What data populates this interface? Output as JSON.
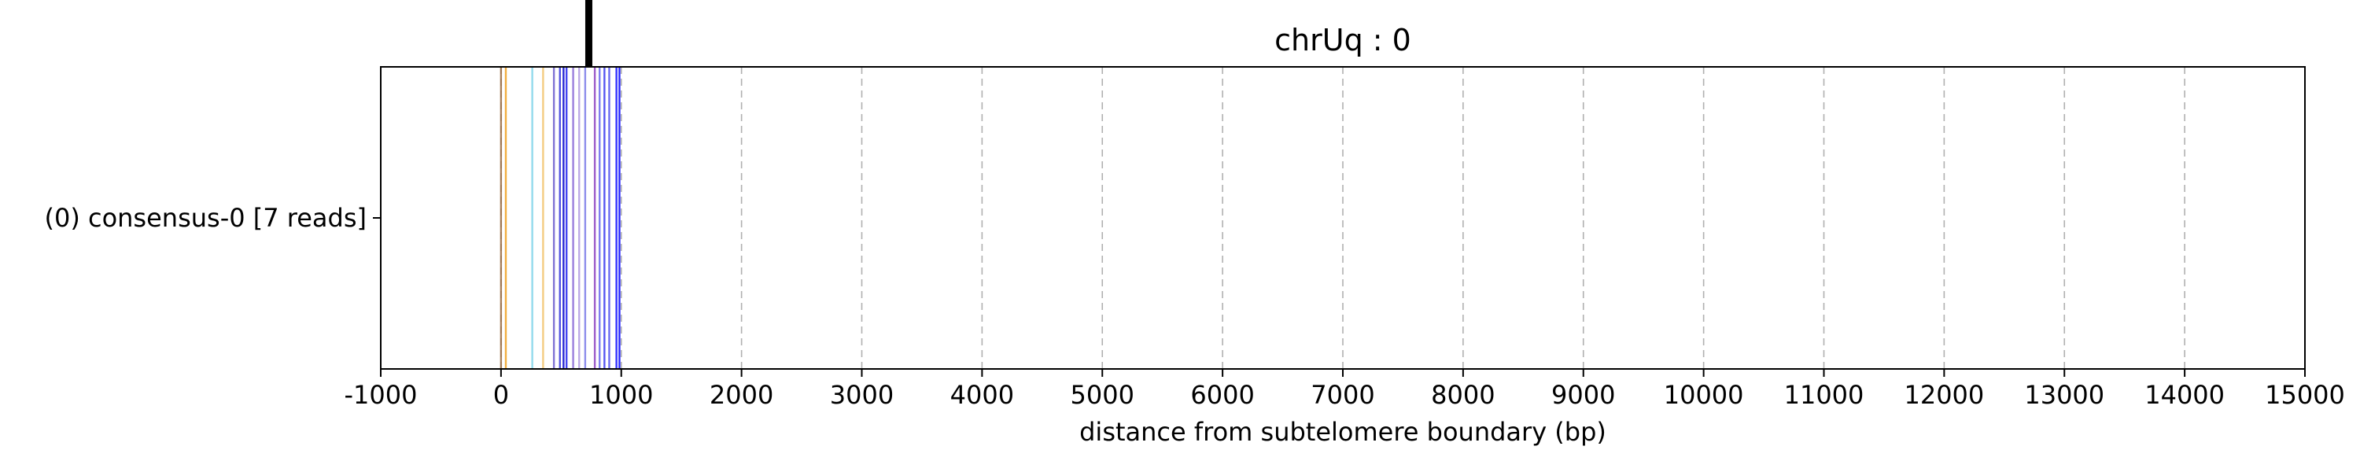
{
  "chart_data": {
    "type": "line",
    "title": "chrUq : 0",
    "xlabel": "distance from subtelomere boundary (bp)",
    "ylabel": "",
    "xlim": [
      -1000,
      15000
    ],
    "xticks": [
      -1000,
      0,
      1000,
      2000,
      3000,
      4000,
      5000,
      6000,
      7000,
      8000,
      9000,
      10000,
      11000,
      12000,
      13000,
      14000,
      15000
    ],
    "x_grid": true,
    "y_categories": [
      "(0) consensus-0 [7 reads]"
    ],
    "boundary_marker": {
      "x": 730,
      "color": "#000000"
    },
    "features": [
      {
        "x": 0,
        "color": "#9a6b3f"
      },
      {
        "x": 40,
        "color": "#f0a020"
      },
      {
        "x": 260,
        "color": "#7fd3ea"
      },
      {
        "x": 350,
        "color": "#f2c36b"
      },
      {
        "x": 440,
        "color": "#6a5acd"
      },
      {
        "x": 490,
        "color": "#3333dd"
      },
      {
        "x": 520,
        "color": "#0000cc"
      },
      {
        "x": 545,
        "color": "#2222ee"
      },
      {
        "x": 600,
        "color": "#8a6ad6"
      },
      {
        "x": 650,
        "color": "#b09ae0"
      },
      {
        "x": 700,
        "color": "#7a7ae8"
      },
      {
        "x": 780,
        "color": "#8b3fbf"
      },
      {
        "x": 820,
        "color": "#6666ee"
      },
      {
        "x": 860,
        "color": "#3a3aee"
      },
      {
        "x": 900,
        "color": "#5050f0"
      },
      {
        "x": 960,
        "color": "#1010ff"
      },
      {
        "x": 985,
        "color": "#0000ff"
      }
    ]
  }
}
